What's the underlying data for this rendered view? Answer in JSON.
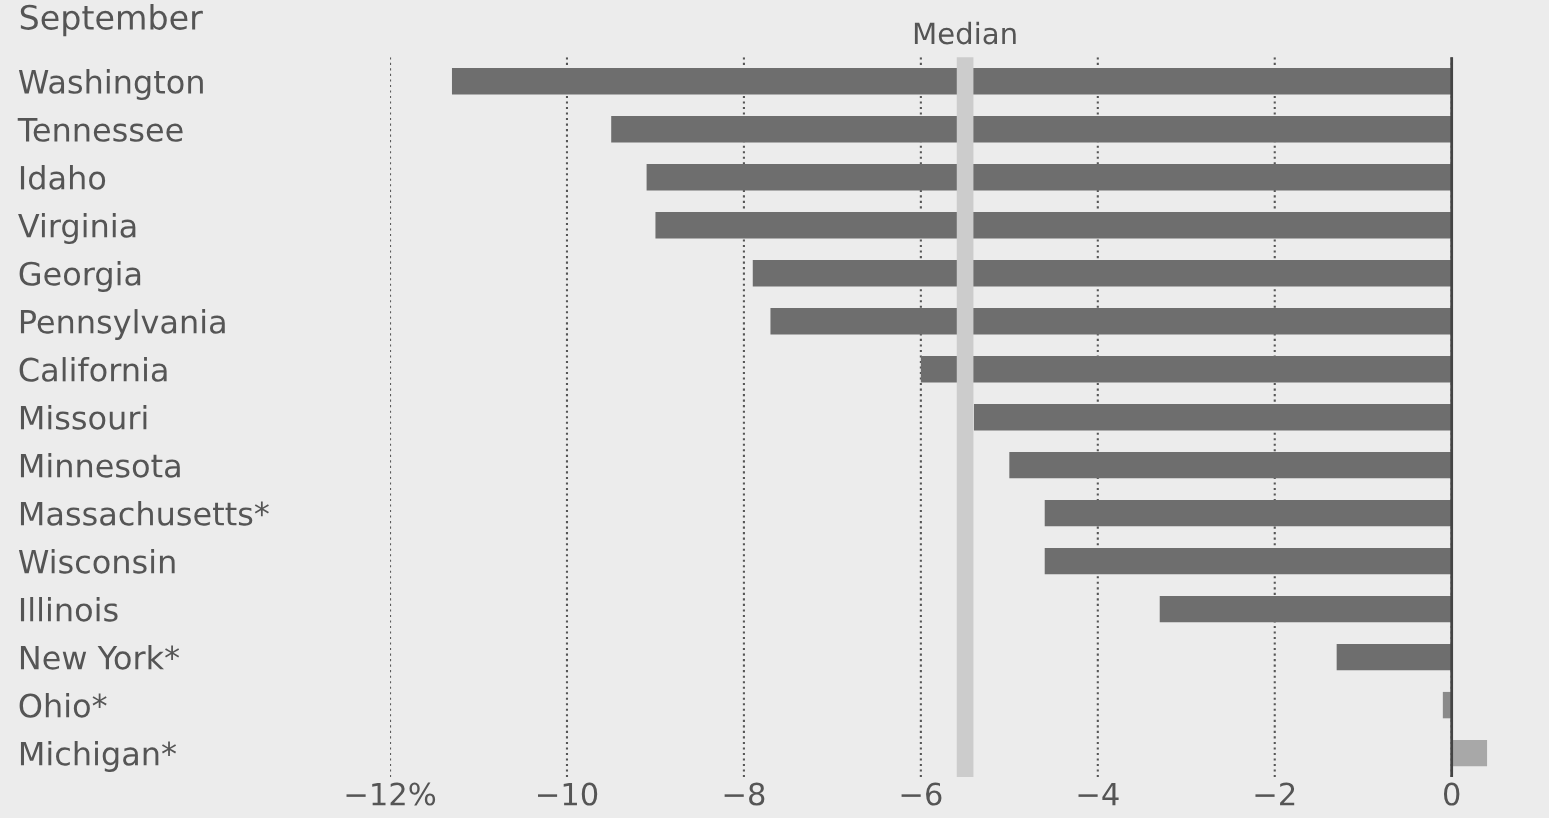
{
  "chart_data": {
    "type": "bar",
    "orientation": "horizontal",
    "title": "September",
    "categories": [
      "Washington",
      "Tennessee",
      "Idaho",
      "Virginia",
      "Georgia",
      "Pennsylvania",
      "California",
      "Missouri",
      "Minnesota",
      "Massachusetts*",
      "Wisconsin",
      "Illinois",
      "New York*",
      "Ohio*",
      "Michigan*"
    ],
    "values": [
      -11.3,
      -9.5,
      -9.1,
      -9.0,
      -7.9,
      -7.7,
      -6.0,
      -5.4,
      -5.0,
      -4.6,
      -4.6,
      -3.3,
      -1.3,
      -0.1,
      0.4
    ],
    "colors": [
      "#6e6e6e",
      "#6e6e6e",
      "#6e6e6e",
      "#6e6e6e",
      "#6e6e6e",
      "#6e6e6e",
      "#6e6e6e",
      "#6e6e6e",
      "#6e6e6e",
      "#6e6e6e",
      "#6e6e6e",
      "#6e6e6e",
      "#6e6e6e",
      "#8a8a8a",
      "#a8a8a8"
    ],
    "xlim": [
      -12,
      1.1
    ],
    "xticks": [
      {
        "value": -12,
        "label": "−12%"
      },
      {
        "value": -10,
        "label": "−10"
      },
      {
        "value": -8,
        "label": "−8"
      },
      {
        "value": -6,
        "label": "−6"
      },
      {
        "value": -4,
        "label": "−4"
      },
      {
        "value": -2,
        "label": "−2"
      },
      0
    ],
    "grid": "x",
    "ref_lines": [
      {
        "axis": "x",
        "value": -5.5,
        "label": "Median",
        "color": "#cccccc"
      },
      {
        "axis": "x",
        "value": 0,
        "color": "#444444"
      }
    ]
  }
}
